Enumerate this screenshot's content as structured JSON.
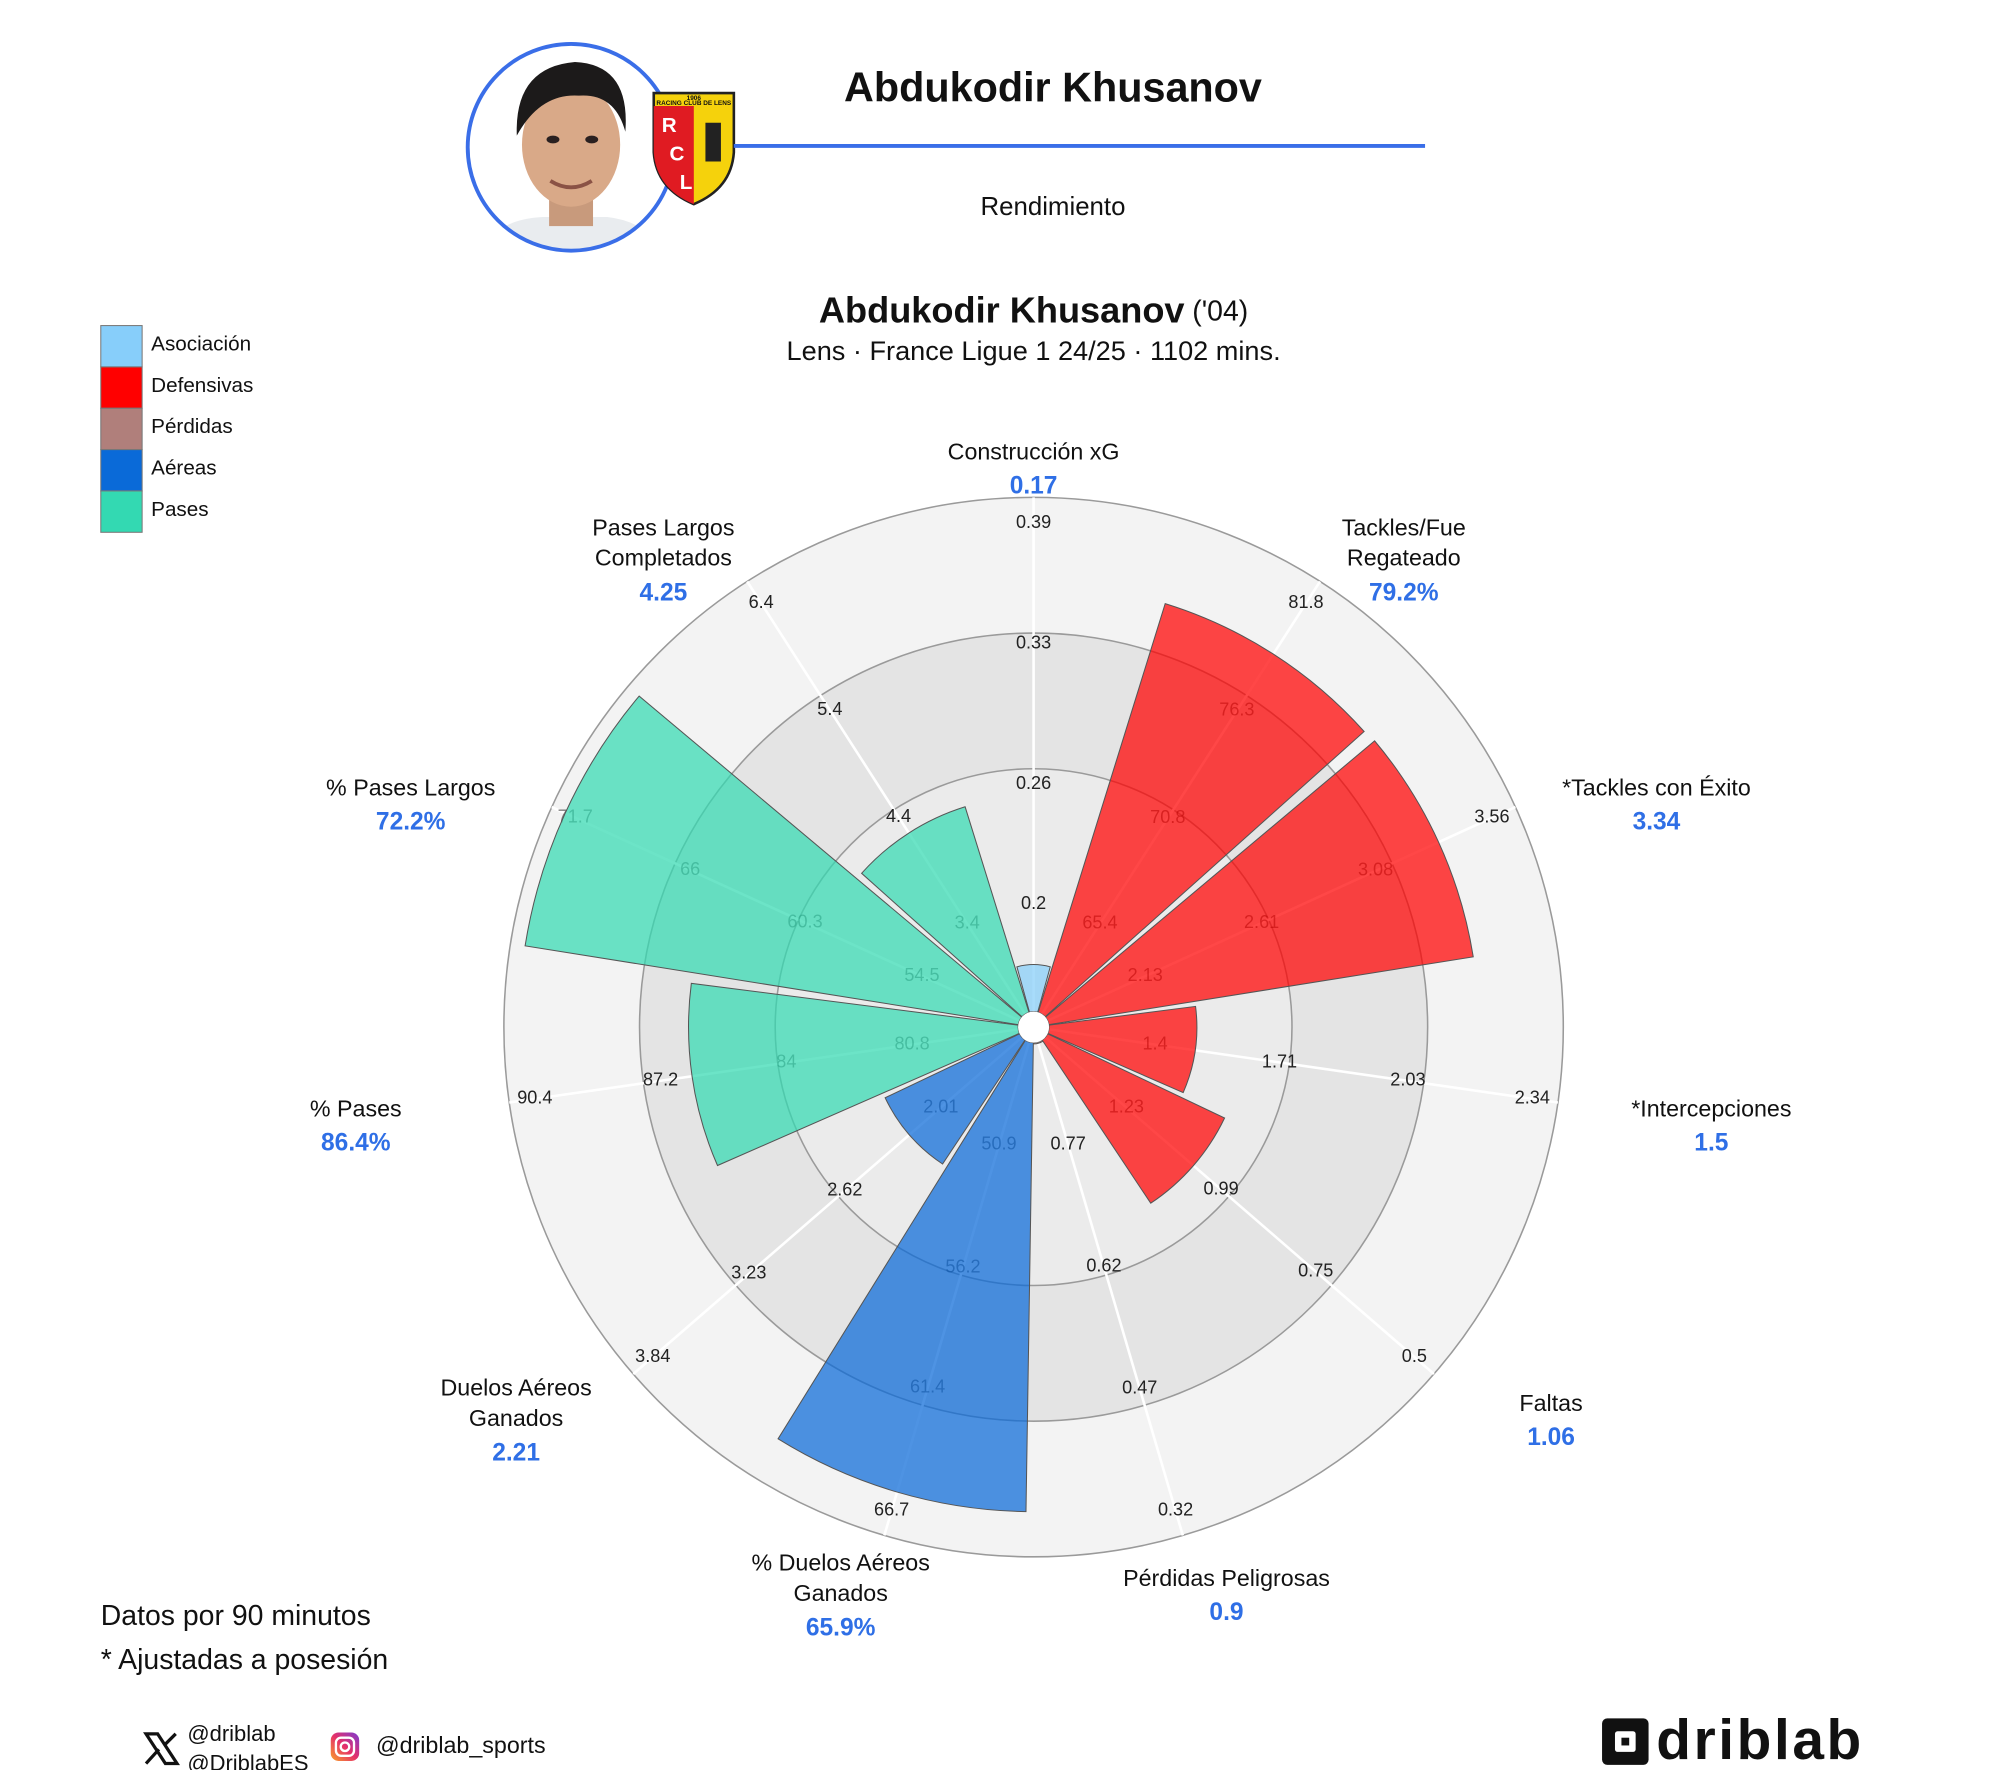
{
  "header": {
    "name": "Abdukodir Khusanov",
    "subtitle": "Rendimiento",
    "badge": {
      "year": "1906",
      "club": "RACING CLUB DE LENS",
      "letters": [
        "R",
        "C",
        "L"
      ]
    }
  },
  "chart_data": {
    "type": "pizza",
    "title": "Abdukodir Khusanov",
    "title_suffix": "('04)",
    "subtitle": "Lens · France Ligue 1 24/25 · 1102 mins.",
    "series": [
      {
        "name": "Asociación",
        "color": "#87cefa",
        "axes": [
          {
            "label": [
              "Construcción xG"
            ],
            "value": 0.17,
            "value_label": "0.17",
            "ticks": [
              0.2,
              0.26,
              0.33,
              0.39
            ]
          }
        ]
      },
      {
        "name": "Defensivas",
        "color": "#ff0000",
        "axes": [
          {
            "label": [
              "Tackles/Fue",
              "Regateado"
            ],
            "value": 79.2,
            "value_label": "79.2%",
            "ticks": [
              65.4,
              70.8,
              76.3,
              81.8
            ]
          },
          {
            "label": [
              "*Tackles con Éxito"
            ],
            "value": 3.34,
            "value_label": "3.34",
            "ticks": [
              2.13,
              2.61,
              3.08,
              3.56
            ]
          },
          {
            "label": [
              "*Intercepciones"
            ],
            "value": 1.5,
            "value_label": "1.5",
            "ticks": [
              1.4,
              1.71,
              2.03,
              2.34
            ]
          },
          {
            "label": [
              "Faltas"
            ],
            "value": 1.06,
            "value_label": "1.06",
            "ticks": [
              1.23,
              0.99,
              0.75,
              0.5
            ]
          }
        ]
      },
      {
        "name": "Pérdidas",
        "color": "#b07f7b",
        "axes": [
          {
            "label": [
              "Pérdidas Peligrosas"
            ],
            "value": 0.9,
            "value_label": "0.9",
            "ticks": [
              0.77,
              0.62,
              0.47,
              0.32
            ]
          }
        ]
      },
      {
        "name": "Aéreas",
        "color": "#0a6ad8",
        "axes": [
          {
            "label": [
              "% Duelos Aéreos",
              "Ganados"
            ],
            "value": 65.9,
            "value_label": "65.9%",
            "ticks": [
              50.9,
              56.2,
              61.4,
              66.7
            ]
          },
          {
            "label": [
              "Duelos Aéreos",
              "Ganados"
            ],
            "value": 2.21,
            "value_label": "2.21",
            "ticks": [
              2.01,
              2.62,
              3.23,
              3.84
            ]
          }
        ]
      },
      {
        "name": "Pases",
        "color": "#33d9b2",
        "axes": [
          {
            "label": [
              "% Pases"
            ],
            "value": 86.4,
            "value_label": "86.4%",
            "ticks": [
              80.8,
              84,
              87.2,
              90.4
            ]
          },
          {
            "label": [
              "% Pases Largos"
            ],
            "value": 72.2,
            "value_label": "72.2%",
            "ticks": [
              54.5,
              60.3,
              66,
              71.7
            ]
          },
          {
            "label": [
              "Pases Largos",
              "Completados"
            ],
            "value": 4.25,
            "value_label": "4.25",
            "ticks": [
              3.4,
              4.4,
              5.4,
              6.4
            ]
          }
        ]
      }
    ]
  },
  "footer": {
    "notes": [
      "Datos por 90 minutos",
      "* Ajustadas a posesión"
    ],
    "x_handles": [
      "@driblab",
      "@DriblabES"
    ],
    "instagram": "@driblab_sports",
    "logo": "driblab"
  }
}
